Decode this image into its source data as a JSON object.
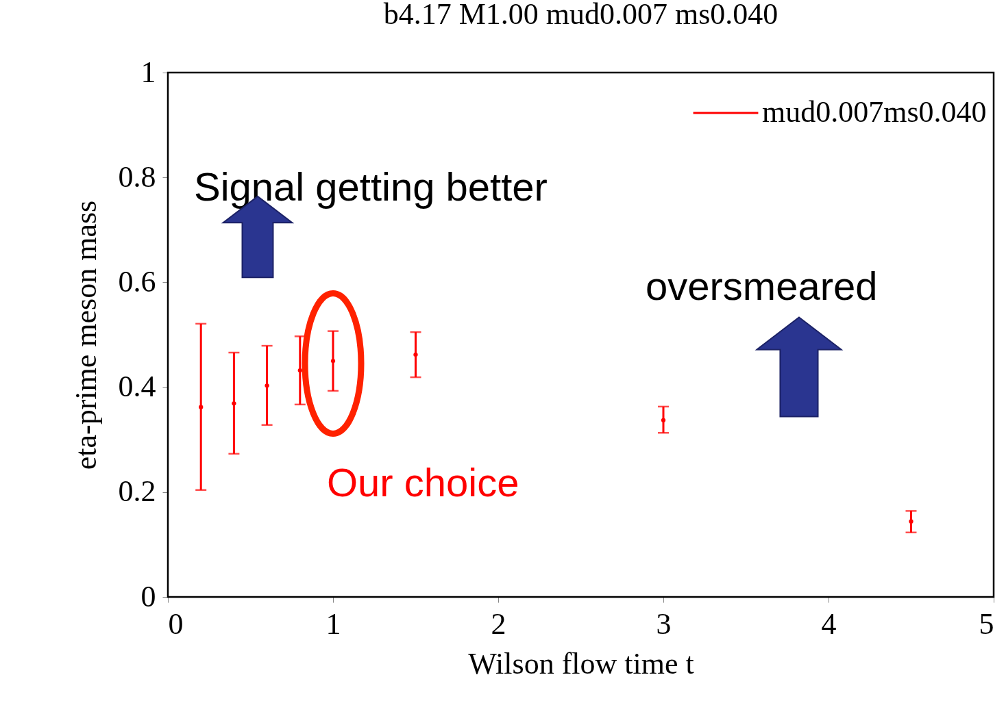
{
  "chart_data": {
    "type": "scatter",
    "title": "b4.17 M1.00 mud0.007 ms0.040",
    "xlabel": "Wilson flow time t",
    "ylabel": "eta-prime meson mass",
    "x": [
      0.2,
      0.4,
      0.6,
      0.8,
      1.0,
      1.5,
      3.0,
      4.5
    ],
    "series": [
      {
        "name": "mud0.007ms0.040",
        "color": "#ff0000",
        "values": [
          0.362,
          0.369,
          0.403,
          0.432,
          0.45,
          0.462,
          0.337,
          0.144
        ],
        "errors": [
          [
            0.204,
            0.521
          ],
          [
            0.273,
            0.466
          ],
          [
            0.328,
            0.479
          ],
          [
            0.367,
            0.497
          ],
          [
            0.393,
            0.507
          ],
          [
            0.419,
            0.505
          ],
          [
            0.313,
            0.363
          ],
          [
            0.123,
            0.164
          ]
        ]
      }
    ],
    "xlim": [
      0,
      5
    ],
    "ylim": [
      0,
      1
    ],
    "xticks": [
      0,
      1,
      2,
      3,
      4,
      5
    ],
    "yticks": [
      0,
      0.2,
      0.4,
      0.6,
      0.8,
      1
    ],
    "annotations": [
      "Signal getting better",
      "oversmeared",
      "Our choice"
    ],
    "legend": "top right",
    "grid": false,
    "marker": "circle"
  }
}
